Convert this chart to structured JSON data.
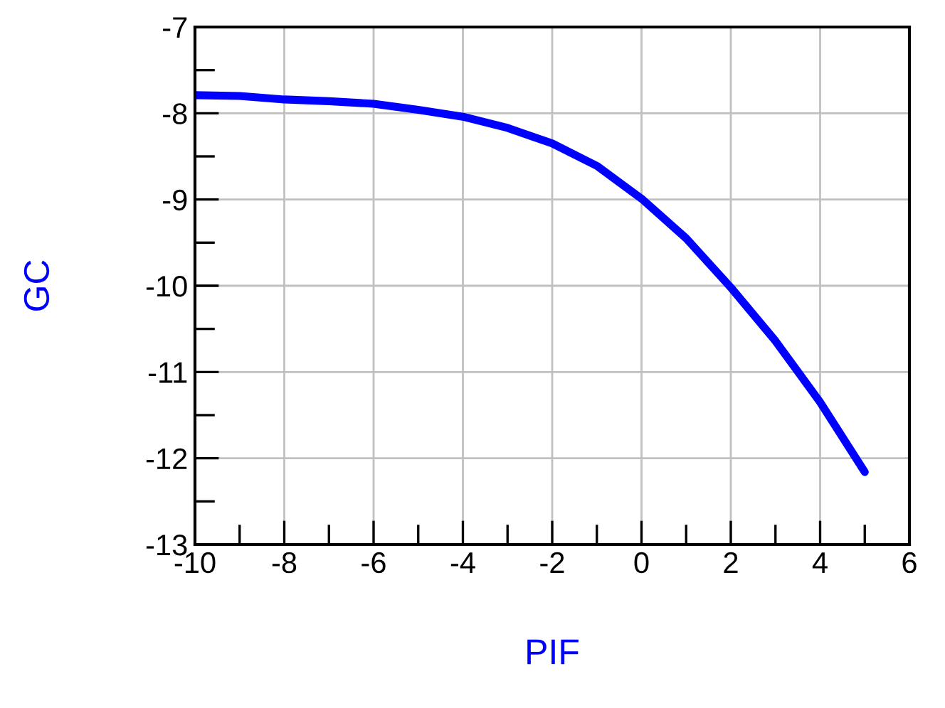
{
  "chart_data": {
    "type": "line",
    "xlabel": "PIF",
    "ylabel": "GC",
    "x": [
      -10,
      -9,
      -8,
      -7,
      -6,
      -5,
      -4,
      -3,
      -2,
      -1,
      0,
      1,
      2,
      3,
      4,
      5
    ],
    "series": [
      {
        "color": "#0000ff",
        "values": [
          -7.79,
          -7.8,
          -7.84,
          -7.86,
          -7.89,
          -7.96,
          -8.04,
          -8.17,
          -8.35,
          -8.61,
          -8.99,
          -9.45,
          -10.02,
          -10.64,
          -11.35,
          -12.16
        ]
      }
    ],
    "xlim": [
      -10,
      6
    ],
    "xticks": [
      -10,
      -8,
      -6,
      -4,
      -2,
      0,
      2,
      4,
      6
    ],
    "ylim": [
      -13,
      -7
    ],
    "yticks": [
      -13,
      -12,
      -11,
      -10,
      -9,
      -8,
      -7
    ],
    "grid": true,
    "marker": "none",
    "line_style": "solid"
  }
}
